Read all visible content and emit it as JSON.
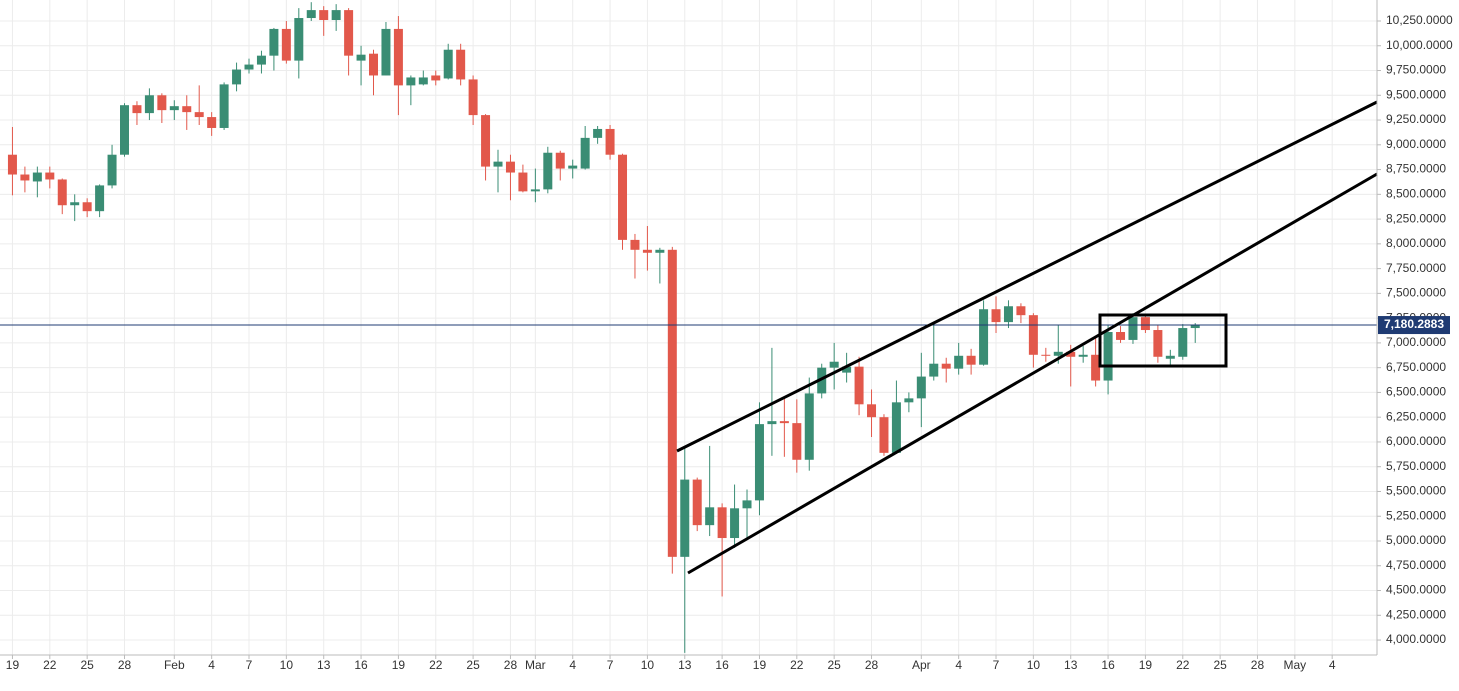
{
  "chart_data": {
    "type": "candlestick",
    "x": [
      0,
      1,
      2,
      3,
      4,
      5,
      6,
      7,
      8,
      9,
      10,
      11,
      12,
      13,
      14,
      15,
      16,
      17,
      18,
      19,
      20,
      21,
      22,
      23,
      24,
      25,
      26,
      27,
      28,
      29,
      30,
      31,
      32,
      33,
      34,
      35,
      36,
      37,
      38,
      39,
      40,
      41,
      42,
      43,
      44,
      45,
      46,
      47,
      48,
      49,
      50,
      51,
      52,
      53,
      54,
      55,
      56,
      57,
      58,
      59,
      60,
      61,
      62,
      63,
      64,
      65,
      66,
      67,
      68,
      69,
      70,
      71,
      72,
      73,
      74,
      75,
      76,
      77,
      78,
      79,
      80,
      81,
      82,
      83,
      84,
      85,
      86,
      87,
      88,
      89,
      90,
      91,
      92,
      93,
      94,
      95
    ],
    "open": [
      8900,
      8700,
      8630,
      8720,
      8650,
      8390,
      8420,
      8330,
      8590,
      8900,
      9400,
      9320,
      9500,
      9350,
      9390,
      9330,
      9280,
      9170,
      9610,
      9760,
      9810,
      9900,
      10170,
      9850,
      10280,
      10360,
      10260,
      10360,
      9850,
      9920,
      9700,
      10170,
      9600,
      9610,
      9700,
      9670,
      9960,
      9660,
      9300,
      8780,
      8830,
      8720,
      8530,
      8550,
      8920,
      8760,
      8760,
      9070,
      9160,
      8900,
      8040,
      7940,
      7910,
      7940,
      4840,
      5620,
      5160,
      5340,
      5030,
      5330,
      5410,
      6180,
      6210,
      6190,
      5820,
      6490,
      6750,
      6700,
      6760,
      6380,
      6250,
      5890,
      6400,
      6440,
      6660,
      6790,
      6740,
      6870,
      6780,
      7340,
      7210,
      7370,
      7280,
      6880,
      6870,
      6910,
      6860,
      6880,
      6620,
      7110,
      7030,
      7260,
      7130,
      6840,
      6860,
      7150
    ],
    "high": [
      9180,
      8780,
      8780,
      8780,
      8660,
      8500,
      8460,
      8600,
      9000,
      9420,
      9440,
      9570,
      9520,
      9450,
      9500,
      9600,
      9330,
      9630,
      9830,
      9870,
      9950,
      10180,
      10250,
      10380,
      10440,
      10400,
      10420,
      10380,
      10000,
      9960,
      10240,
      10300,
      9700,
      9750,
      9750,
      10020,
      10020,
      9700,
      9310,
      8950,
      8900,
      8800,
      8760,
      8980,
      8940,
      8850,
      9190,
      9190,
      9200,
      8910,
      8100,
      8180,
      7960,
      7970,
      5950,
      5640,
      5960,
      5380,
      5570,
      5520,
      6400,
      6950,
      6450,
      6430,
      6650,
      6790,
      7000,
      6900,
      6860,
      6530,
      6280,
      6620,
      6500,
      6900,
      7200,
      6850,
      7000,
      6940,
      7430,
      7470,
      7430,
      7400,
      7300,
      6950,
      7180,
      6980,
      6970,
      7050,
      7180,
      7170,
      7300,
      7290,
      7180,
      6930,
      7190,
      7200
    ],
    "low": [
      8490,
      8520,
      8470,
      8560,
      8300,
      8230,
      8270,
      8270,
      8560,
      8880,
      9200,
      9250,
      9220,
      9250,
      9150,
      9200,
      9090,
      9150,
      9540,
      9720,
      9720,
      9750,
      9820,
      9670,
      10250,
      10100,
      10150,
      9700,
      9600,
      9500,
      9700,
      9300,
      9400,
      9600,
      9600,
      9660,
      9600,
      9200,
      8640,
      8520,
      8440,
      8520,
      8420,
      8510,
      8640,
      8660,
      8750,
      9010,
      8850,
      7940,
      7650,
      7730,
      7600,
      4670,
      3870,
      5100,
      5050,
      4440,
      4930,
      5030,
      5260,
      5860,
      5850,
      5690,
      5710,
      6440,
      6530,
      6600,
      6270,
      6050,
      5860,
      5880,
      6300,
      6150,
      6620,
      6600,
      6680,
      6680,
      6770,
      7100,
      7150,
      7200,
      6750,
      6810,
      6790,
      6560,
      6800,
      6560,
      6480,
      7000,
      6990,
      7100,
      6800,
      6780,
      6830,
      7000
    ],
    "close": [
      8700,
      8640,
      8720,
      8650,
      8390,
      8420,
      8330,
      8590,
      8900,
      9400,
      9320,
      9500,
      9350,
      9390,
      9330,
      9280,
      9170,
      9610,
      9760,
      9810,
      9900,
      10170,
      9850,
      10280,
      10360,
      10260,
      10360,
      9900,
      9910,
      9700,
      10170,
      9600,
      9680,
      9680,
      9650,
      9960,
      9660,
      9300,
      8780,
      8830,
      8720,
      8530,
      8550,
      8920,
      8760,
      8790,
      9070,
      9160,
      8900,
      8040,
      7940,
      7910,
      7940,
      4840,
      5620,
      5160,
      5340,
      5030,
      5330,
      5410,
      6180,
      6210,
      6190,
      5820,
      6490,
      6750,
      6810,
      6760,
      6380,
      6250,
      5890,
      6400,
      6440,
      6660,
      6790,
      6740,
      6870,
      6780,
      7340,
      7210,
      7370,
      7280,
      6880,
      6870,
      6910,
      6860,
      6880,
      6620,
      7110,
      7030,
      7260,
      7130,
      6860,
      6870,
      7150,
      7180
    ],
    "up_color": "#3a8d74",
    "down_color": "#e2584b",
    "last_price": 7180.2883,
    "last_price_label": "7,180.2883",
    "last_price_color": "#1f3b73",
    "xlim": [
      -1,
      109.6
    ],
    "ylim": [
      3849,
      10462
    ],
    "xticks": [
      {
        "value": 0,
        "label": "19"
      },
      {
        "value": 3,
        "label": "22"
      },
      {
        "value": 6,
        "label": "25"
      },
      {
        "value": 9,
        "label": "28"
      },
      {
        "value": 13,
        "label": "Feb"
      },
      {
        "value": 16,
        "label": "4"
      },
      {
        "value": 19,
        "label": "7"
      },
      {
        "value": 22,
        "label": "10"
      },
      {
        "value": 25,
        "label": "13"
      },
      {
        "value": 28,
        "label": "16"
      },
      {
        "value": 31,
        "label": "19"
      },
      {
        "value": 34,
        "label": "22"
      },
      {
        "value": 37,
        "label": "25"
      },
      {
        "value": 40,
        "label": "28"
      },
      {
        "value": 42,
        "label": "Mar"
      },
      {
        "value": 45,
        "label": "4"
      },
      {
        "value": 48,
        "label": "7"
      },
      {
        "value": 51,
        "label": "10"
      },
      {
        "value": 54,
        "label": "13"
      },
      {
        "value": 57,
        "label": "16"
      },
      {
        "value": 60,
        "label": "19"
      },
      {
        "value": 63,
        "label": "22"
      },
      {
        "value": 66,
        "label": "25"
      },
      {
        "value": 69,
        "label": "28"
      },
      {
        "value": 73,
        "label": "Apr"
      },
      {
        "value": 76,
        "label": "4"
      },
      {
        "value": 79,
        "label": "7"
      },
      {
        "value": 82,
        "label": "10"
      },
      {
        "value": 85,
        "label": "13"
      },
      {
        "value": 88,
        "label": "16"
      },
      {
        "value": 91,
        "label": "19"
      },
      {
        "value": 94,
        "label": "22"
      },
      {
        "value": 97,
        "label": "25"
      },
      {
        "value": 100,
        "label": "28"
      },
      {
        "value": 103,
        "label": "May"
      },
      {
        "value": 106,
        "label": "4"
      }
    ],
    "yticks": [
      {
        "value": 4000,
        "label": "4,000.0000"
      },
      {
        "value": 4250,
        "label": "4,250.0000"
      },
      {
        "value": 4500,
        "label": "4,500.0000"
      },
      {
        "value": 4750,
        "label": "4,750.0000"
      },
      {
        "value": 5000,
        "label": "5,000.0000"
      },
      {
        "value": 5250,
        "label": "5,250.0000"
      },
      {
        "value": 5500,
        "label": "5,500.0000"
      },
      {
        "value": 5750,
        "label": "5,750.0000"
      },
      {
        "value": 6000,
        "label": "6,000.0000"
      },
      {
        "value": 6250,
        "label": "6,250.0000"
      },
      {
        "value": 6500,
        "label": "6,500.0000"
      },
      {
        "value": 6750,
        "label": "6,750.0000"
      },
      {
        "value": 7000,
        "label": "7,000.0000"
      },
      {
        "value": 7250,
        "label": "7,250.0000"
      },
      {
        "value": 7500,
        "label": "7,500.0000"
      },
      {
        "value": 7750,
        "label": "7,750.0000"
      },
      {
        "value": 8000,
        "label": "8,000.0000"
      },
      {
        "value": 8250,
        "label": "8,250.0000"
      },
      {
        "value": 8500,
        "label": "8,500.0000"
      },
      {
        "value": 8750,
        "label": "8,750.0000"
      },
      {
        "value": 9000,
        "label": "9,000.0000"
      },
      {
        "value": 9250,
        "label": "9,250.0000"
      },
      {
        "value": 9500,
        "label": "9,500.0000"
      },
      {
        "value": 9750,
        "label": "9,750.0000"
      },
      {
        "value": 10000,
        "label": "10,000.0000"
      },
      {
        "value": 10250,
        "label": "10,250.0000"
      }
    ],
    "grid": true
  }
}
